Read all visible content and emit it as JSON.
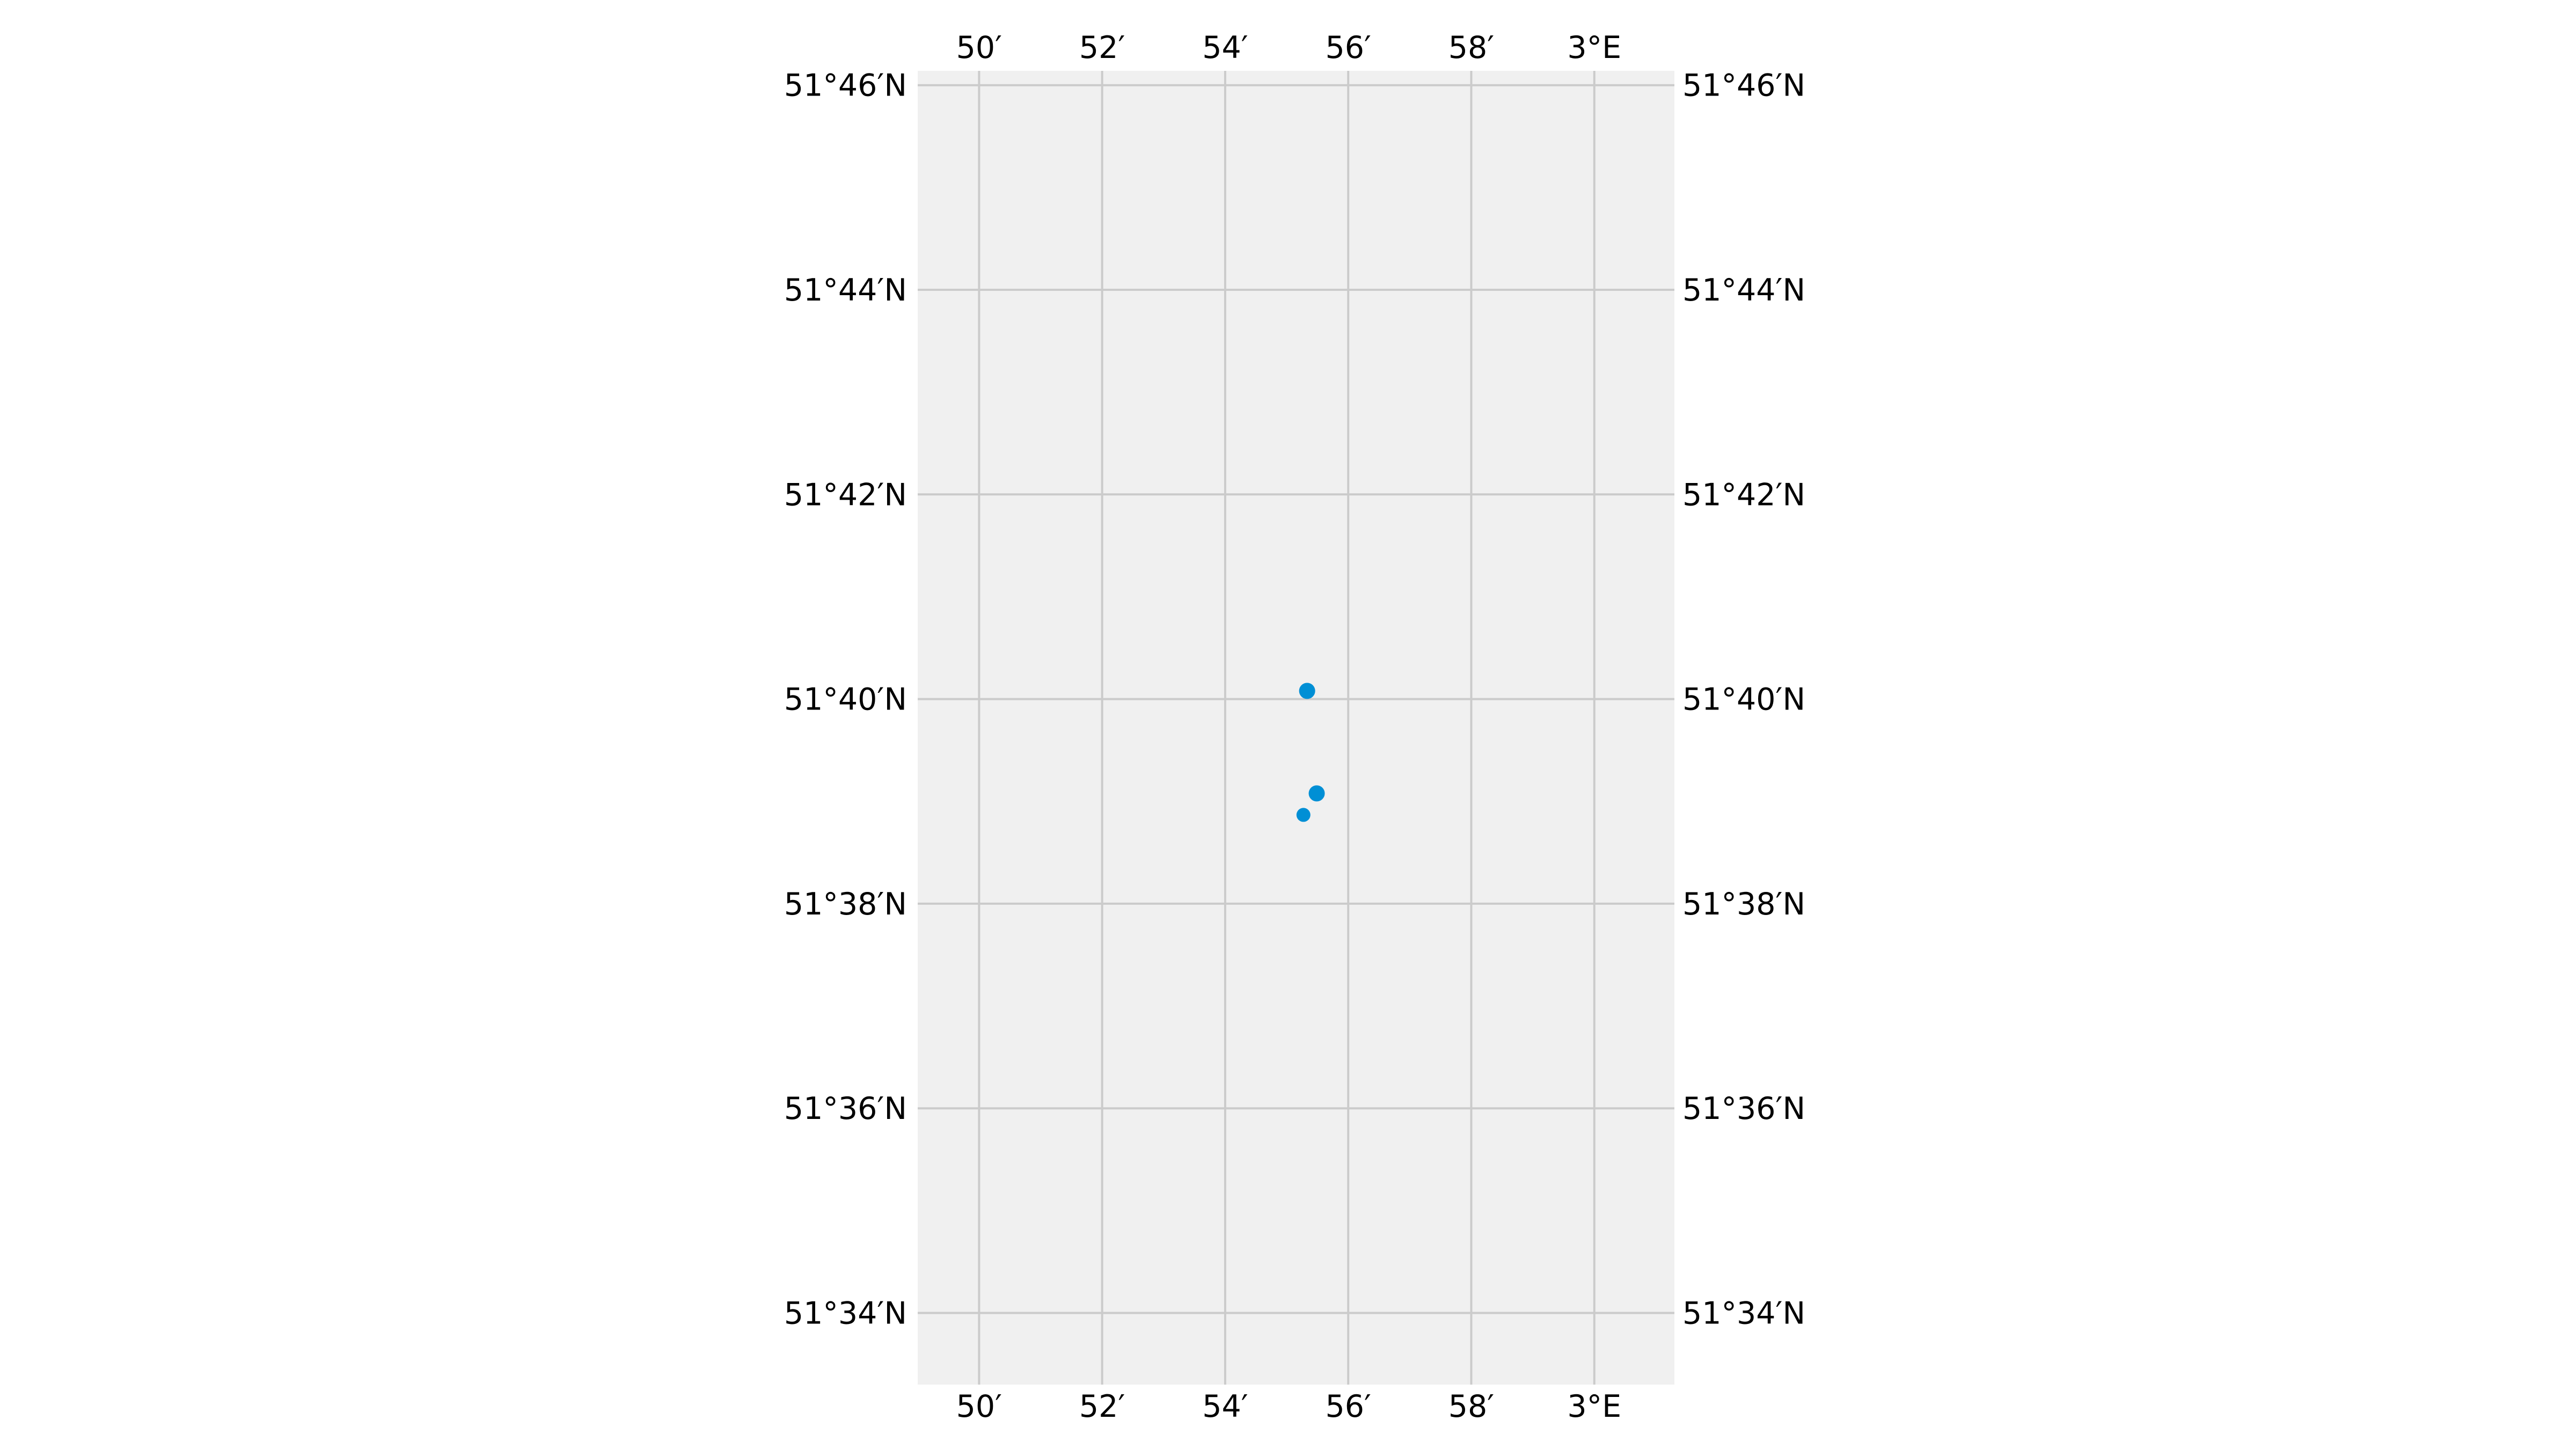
{
  "map": {
    "projection": "plate carree",
    "extent": {
      "lon": [
        2.8167,
        3.0217
      ],
      "lat": [
        51.555,
        51.769
      ]
    },
    "background_color": "#f0f0f0",
    "gridline_color": "#cbcbcb",
    "point_color": "#008fd5",
    "longitude_ticks": [
      {
        "value": 2.833333,
        "label": "50′"
      },
      {
        "value": 2.866667,
        "label": "52′"
      },
      {
        "value": 2.9,
        "label": "54′"
      },
      {
        "value": 2.933333,
        "label": "56′"
      },
      {
        "value": 2.966667,
        "label": "58′"
      },
      {
        "value": 3.0,
        "label": "3°E"
      }
    ],
    "latitude_ticks": [
      {
        "value": 51.766667,
        "label": "51°46′N"
      },
      {
        "value": 51.733333,
        "label": "51°44′N"
      },
      {
        "value": 51.7,
        "label": "51°42′N"
      },
      {
        "value": 51.666667,
        "label": "51°40′N"
      },
      {
        "value": 51.633333,
        "label": "51°38′N"
      },
      {
        "value": 51.6,
        "label": "51°36′N"
      },
      {
        "value": 51.566667,
        "label": "51°34′N"
      }
    ],
    "points": [
      {
        "lon": 2.9222,
        "lat": 51.668
      },
      {
        "lon": 2.9248,
        "lat": 51.6513
      },
      {
        "lon": 2.9212,
        "lat": 51.6478
      }
    ]
  }
}
